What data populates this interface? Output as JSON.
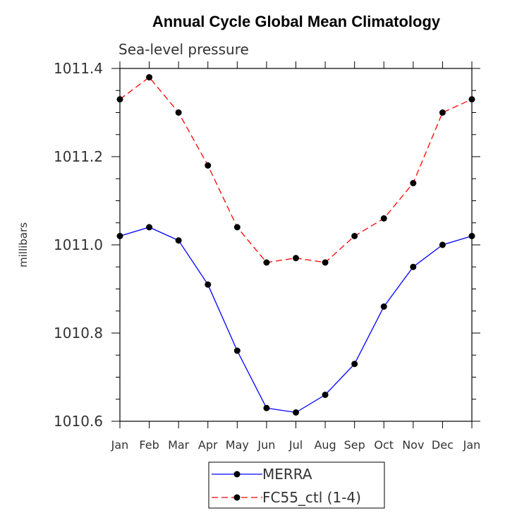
{
  "chart_data": {
    "type": "line",
    "title": "Annual Cycle Global Mean Climatology",
    "subtitle": "Sea-level pressure",
    "xlabel": "",
    "ylabel": "millibars",
    "categories": [
      "Jan",
      "Feb",
      "Mar",
      "Apr",
      "May",
      "Jun",
      "Jul",
      "Aug",
      "Sep",
      "Oct",
      "Nov",
      "Dec",
      "Jan"
    ],
    "ylim": [
      1010.6,
      1011.4
    ],
    "yticks": [
      "1010.6",
      "1010.8",
      "1011.0",
      "1011.2",
      "1011.4"
    ],
    "series": [
      {
        "name": "MERRA",
        "color": "#0000ff",
        "style": "solid",
        "values": [
          1011.02,
          1011.04,
          1011.01,
          1010.91,
          1010.76,
          1010.63,
          1010.62,
          1010.66,
          1010.73,
          1010.86,
          1010.95,
          1011.0,
          1011.02
        ]
      },
      {
        "name": "FC55_ctl (1-4)",
        "color": "#ff0000",
        "style": "dashed",
        "values": [
          1011.33,
          1011.38,
          1011.3,
          1011.18,
          1011.04,
          1010.96,
          1010.97,
          1010.96,
          1011.02,
          1011.06,
          1011.14,
          1011.3,
          1011.33
        ]
      }
    ],
    "legend_position": "bottom-center"
  }
}
